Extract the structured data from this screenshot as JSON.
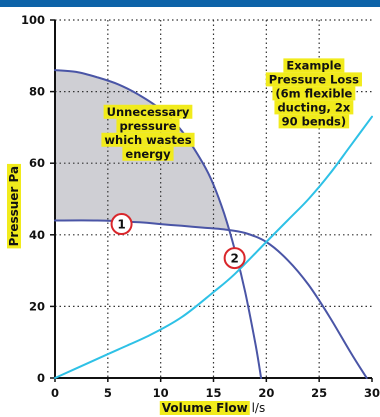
{
  "colors": {
    "header_bar": "#0d63a8",
    "fan_curve": "#4a55a6",
    "system_curve": "#2ec1e6",
    "waste_fill": "#cfcfd4",
    "highlight": "#f1eb1c",
    "marker_ring": "#d9262b",
    "grid": "#333333"
  },
  "chart_data": {
    "type": "line",
    "xlabel_main": "Volume Flow",
    "xlabel_unit": " l/s",
    "ylabel": "Pressuer Pa",
    "xlim": [
      0,
      30
    ],
    "ylim": [
      0,
      100
    ],
    "xticks": [
      0,
      5,
      10,
      15,
      20,
      25,
      30
    ],
    "yticks": [
      0,
      20,
      40,
      60,
      80,
      100
    ],
    "grid": true,
    "series": [
      {
        "id": "fan_high",
        "x": [
          0,
          2,
          4,
          6,
          8,
          10,
          12,
          14,
          15,
          16,
          17,
          18,
          19,
          19.5
        ],
        "y": [
          86,
          85.5,
          84,
          82,
          79,
          75,
          69,
          60,
          54,
          46,
          36,
          24,
          9,
          0
        ]
      },
      {
        "id": "fan_low",
        "x": [
          0,
          4,
          8,
          10,
          12,
          14,
          16,
          18,
          20,
          22,
          24,
          26,
          28,
          29.5
        ],
        "y": [
          44,
          44,
          43.5,
          43,
          42.5,
          42,
          41.5,
          40.5,
          38,
          33,
          26,
          17,
          7,
          0
        ]
      },
      {
        "id": "system_curve",
        "x": [
          0,
          3,
          6,
          9,
          12,
          15,
          17,
          20,
          22,
          24,
          26,
          28,
          30
        ],
        "y": [
          0,
          4,
          8,
          12,
          17,
          24,
          29,
          38,
          44,
          50,
          57,
          65,
          73
        ]
      }
    ],
    "annotations": [
      {
        "id": "waste",
        "lines": [
          "Unnecessary",
          "pressure",
          "which wastes",
          "energy"
        ],
        "x": 8.8,
        "y": 68.5
      },
      {
        "id": "example",
        "lines": [
          "Example",
          "Pressure Loss",
          "(6m flexible",
          "ducting, 2x",
          "90 bends)"
        ],
        "x": 24.5,
        "y": 79.5
      }
    ],
    "markers": [
      {
        "label": "1",
        "x": 6.3,
        "y": 43
      },
      {
        "label": "2",
        "x": 17,
        "y": 33.5
      }
    ]
  }
}
